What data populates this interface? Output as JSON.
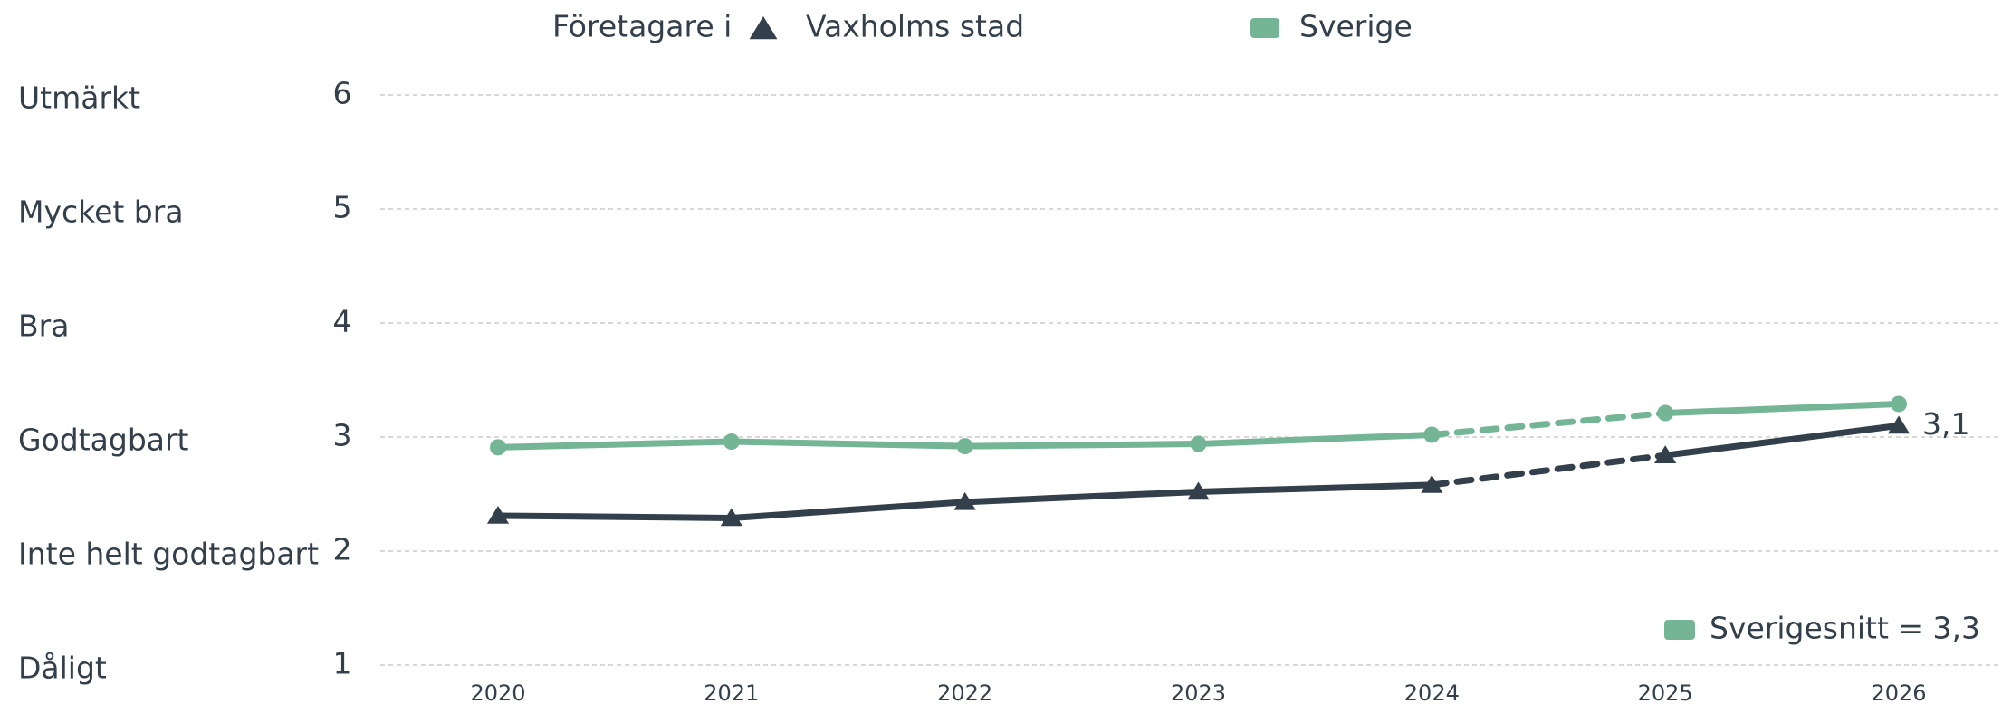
{
  "chart_data": {
    "type": "line",
    "legend_title": "Företagare i",
    "x": [
      "2020",
      "2021",
      "2022",
      "2023",
      "2024",
      "2025",
      "2026"
    ],
    "series": [
      {
        "name": "Vaxholms stad",
        "color": "#333f4b",
        "marker": "triangle",
        "values": [
          2.31,
          2.29,
          2.43,
          2.52,
          2.58,
          2.84,
          3.1
        ],
        "value_labels": [
          null,
          null,
          null,
          null,
          null,
          null,
          "3,1"
        ]
      },
      {
        "name": "Sverige",
        "color": "#74b595",
        "marker": "circle",
        "values": [
          2.91,
          2.96,
          2.92,
          2.94,
          3.02,
          3.21,
          3.29
        ]
      }
    ],
    "dashed_between": [
      4,
      5
    ],
    "ylim": [
      1,
      6
    ],
    "yticks": [
      1,
      2,
      3,
      4,
      5,
      6
    ],
    "ytick_names": [
      "Dåligt",
      "Inte helt godtagbart",
      "Godtagbart",
      "Bra",
      "Mycket bra",
      "Utmärkt"
    ],
    "annotation": "Sverigesnitt = 3,3",
    "annotation_color": "#74b595",
    "grid": true
  }
}
